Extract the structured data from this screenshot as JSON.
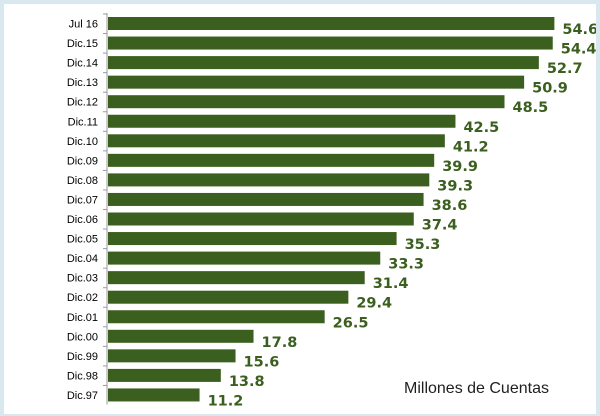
{
  "chart_data": {
    "type": "bar",
    "orientation": "horizontal",
    "categories": [
      "Jul 16",
      "Dic.15",
      "Dic.14",
      "Dic.13",
      "Dic.12",
      "Dic.11",
      "Dic.10",
      "Dic.09",
      "Dic.08",
      "Dic.07",
      "Dic.06",
      "Dic.05",
      "Dic.04",
      "Dic.03",
      "Dic.02",
      "Dic.01",
      "Dic.00",
      "Dic.99",
      "Dic.98",
      "Dic.97"
    ],
    "values": [
      54.6,
      54.4,
      52.7,
      50.9,
      48.5,
      42.5,
      41.2,
      39.9,
      39.3,
      38.6,
      37.4,
      35.3,
      33.3,
      31.4,
      29.4,
      26.5,
      17.8,
      15.6,
      13.8,
      11.2
    ],
    "value_labels": [
      "54.6",
      "54.4",
      "52.7",
      "50.9",
      "48.5",
      "42.5",
      "41.2",
      "39.9",
      "39.3",
      "38.6",
      "37.4",
      "35.3",
      "33.3",
      "31.4",
      "29.4",
      "26.5",
      "17.8",
      "15.6",
      "13.8",
      "11.2"
    ],
    "title": "",
    "xlabel": "",
    "ylabel": "",
    "xlim": [
      0,
      57
    ],
    "grid": false,
    "legend": "none",
    "annotation": "Millones de Cuentas",
    "colors": {
      "bar": "#3b5f1e",
      "value_label": "#3b5f1e",
      "axis": "#9a9a9a",
      "background": "#ffffff",
      "frame": "#d9e7ef"
    }
  }
}
